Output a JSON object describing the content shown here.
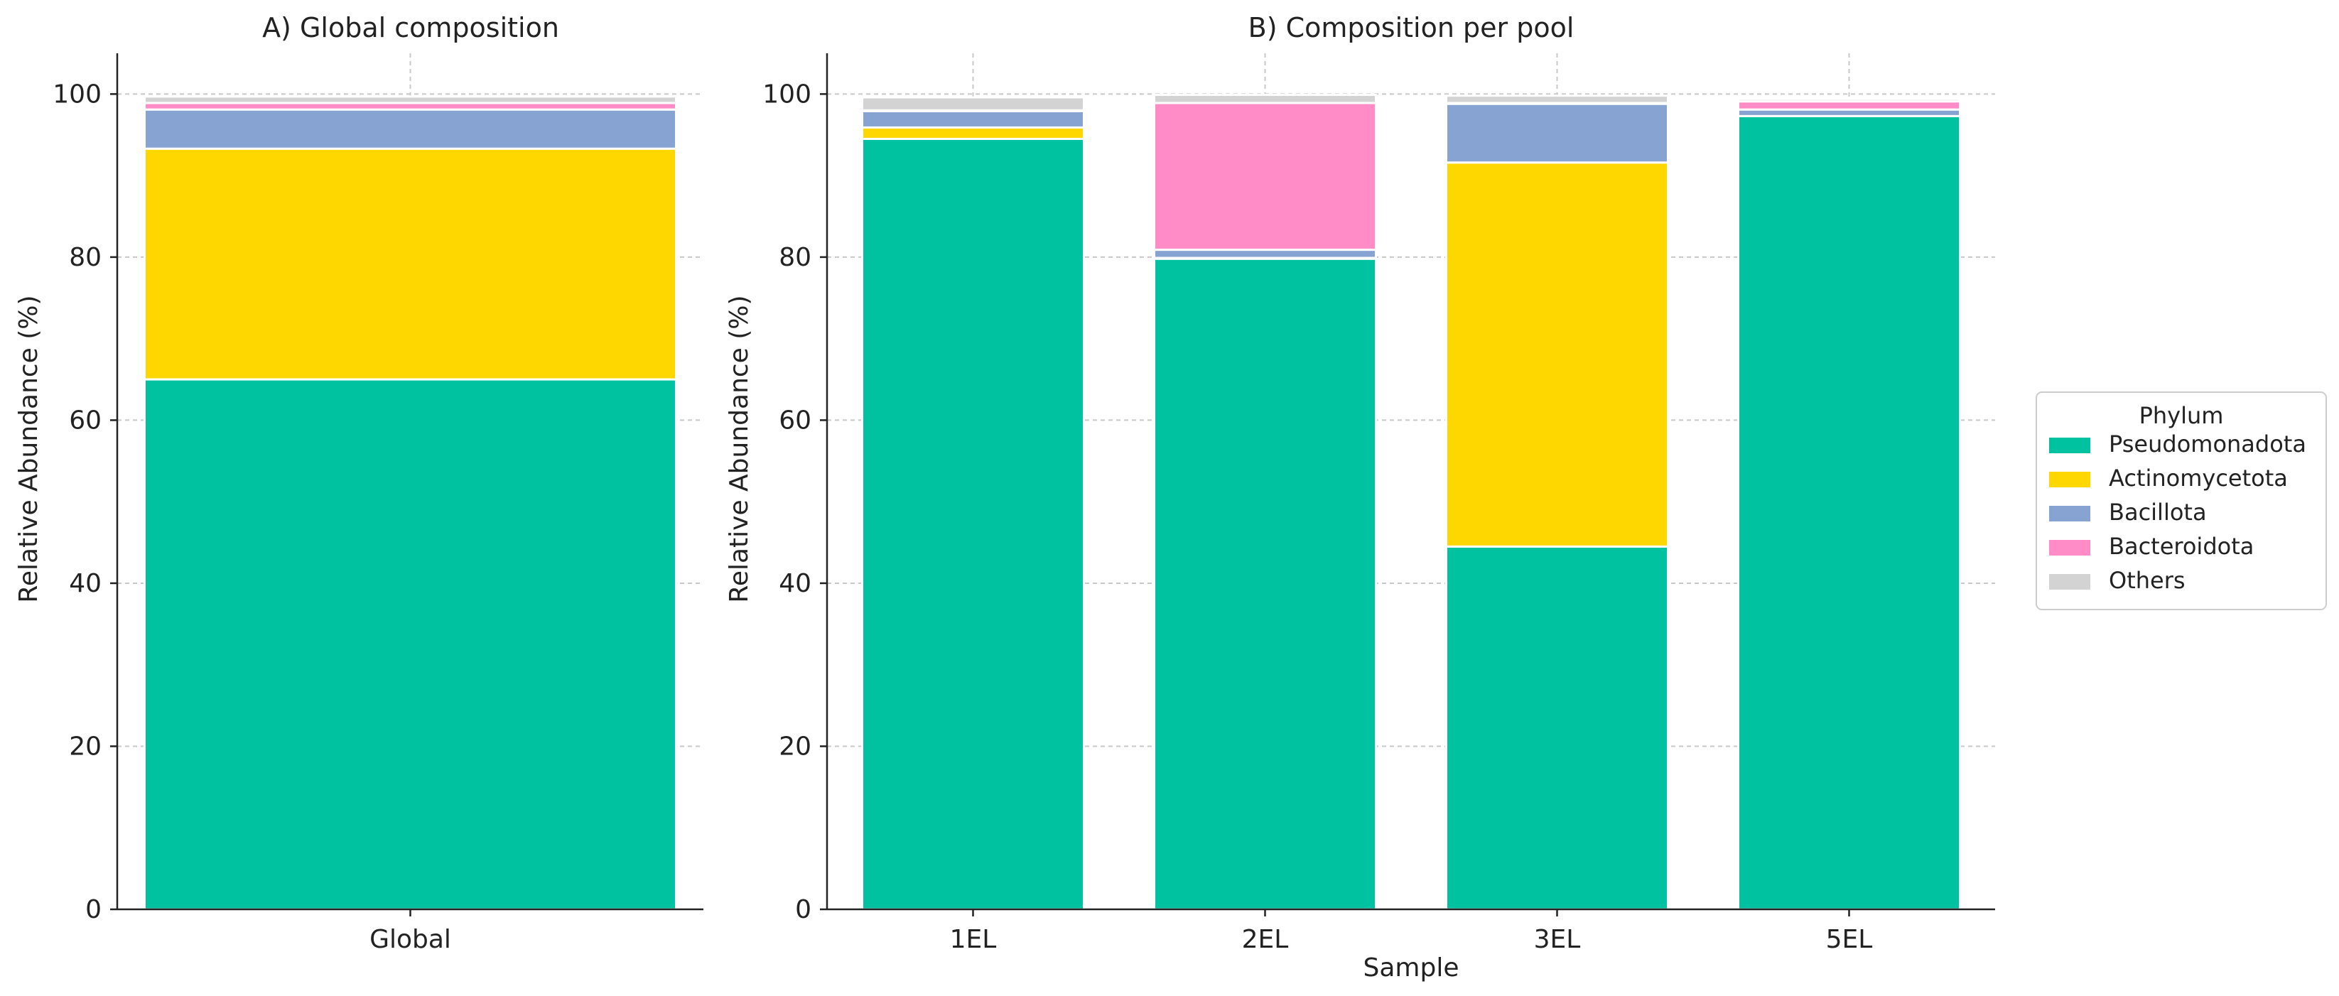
{
  "chart_data": [
    {
      "type": "bar",
      "stacked": true,
      "title": "A) Global composition",
      "xlabel": "",
      "ylabel": "Relative Abundance (%)",
      "ylim": [
        0,
        105
      ],
      "yticks": [
        "0",
        "20",
        "40",
        "60",
        "80",
        "100"
      ],
      "grid": true,
      "categories": [
        "Global"
      ],
      "series": [
        {
          "name": "Pseudomonadota",
          "color": "#00C2A0",
          "values": [
            65.0
          ]
        },
        {
          "name": "Actinomycetota",
          "color": "#FFD700",
          "values": [
            28.3
          ]
        },
        {
          "name": "Bacillota",
          "color": "#87A3D1",
          "values": [
            4.8
          ]
        },
        {
          "name": "Bacteroidota",
          "color": "#FF8CC6",
          "values": [
            0.8
          ]
        },
        {
          "name": "Others",
          "color": "#D3D3D3",
          "values": [
            0.8
          ]
        }
      ]
    },
    {
      "type": "bar",
      "stacked": true,
      "title": "B) Composition per pool",
      "xlabel": "Sample",
      "ylabel": "Relative Abundance (%)",
      "ylim": [
        0,
        105
      ],
      "yticks": [
        "0",
        "20",
        "40",
        "60",
        "80",
        "100"
      ],
      "grid": true,
      "categories": [
        "1EL",
        "2EL",
        "3EL",
        "5EL"
      ],
      "series": [
        {
          "name": "Pseudomonadota",
          "color": "#00C2A0",
          "values": [
            94.5,
            79.8,
            44.5,
            97.3
          ]
        },
        {
          "name": "Actinomycetota",
          "color": "#FFD700",
          "values": [
            1.4,
            0.1,
            47.1,
            0.0
          ]
        },
        {
          "name": "Bacillota",
          "color": "#87A3D1",
          "values": [
            2.0,
            1.0,
            7.2,
            0.8
          ]
        },
        {
          "name": "Bacteroidota",
          "color": "#FF8CC6",
          "values": [
            0.1,
            18.0,
            0.1,
            1.0
          ]
        },
        {
          "name": "Others",
          "color": "#D3D3D3",
          "values": [
            1.6,
            1.0,
            0.9,
            0.3
          ]
        }
      ]
    }
  ],
  "legend": {
    "title": "Phylum",
    "placement": "center-right",
    "entries": [
      {
        "label": "Pseudomonadota",
        "color": "#00C2A0"
      },
      {
        "label": "Actinomycetota",
        "color": "#FFD700"
      },
      {
        "label": "Bacillota",
        "color": "#87A3D1"
      },
      {
        "label": "Bacteroidota",
        "color": "#FF8CC6"
      },
      {
        "label": "Others",
        "color": "#D3D3D3"
      }
    ]
  }
}
